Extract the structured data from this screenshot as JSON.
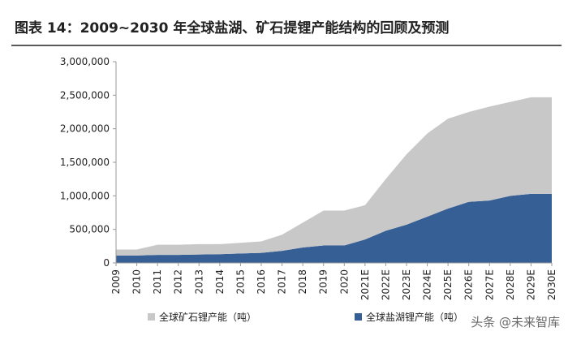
{
  "chart_data": {
    "type": "area",
    "stacked": true,
    "title": "图表 14：2009~2030 年全球盐湖、矿石提锂产能结构的回顾及预测",
    "categories": [
      "2009",
      "2010",
      "2011",
      "2012",
      "2013",
      "2014",
      "2015",
      "2016",
      "2017",
      "2018",
      "2019",
      "2020",
      "2021E",
      "2022E",
      "2023E",
      "2024E",
      "2025E",
      "2026E",
      "2027E",
      "2028E",
      "2029E",
      "2030E"
    ],
    "series": [
      {
        "name": "全球盐湖锂产能（吨）",
        "color": "#355f95",
        "values": [
          110000,
          110000,
          120000,
          120000,
          125000,
          130000,
          140000,
          150000,
          180000,
          230000,
          260000,
          260000,
          350000,
          480000,
          570000,
          690000,
          810000,
          910000,
          930000,
          1000000,
          1030000,
          1030000
        ]
      },
      {
        "name": "全球矿石锂产能（吨）",
        "color": "#c8c8c8",
        "values": [
          90000,
          90000,
          150000,
          150000,
          155000,
          150000,
          160000,
          170000,
          240000,
          370000,
          520000,
          520000,
          510000,
          770000,
          1050000,
          1240000,
          1340000,
          1340000,
          1400000,
          1400000,
          1440000,
          1440000
        ]
      }
    ],
    "ylim": [
      0,
      3000000
    ],
    "yticks": [
      0,
      {
        "value": 500000,
        "label": "500,000"
      },
      {
        "value": 1000000,
        "label": "1,000,000"
      },
      {
        "value": 1500000,
        "label": "1,500,000"
      },
      {
        "value": 2000000,
        "label": "2,000,000"
      },
      {
        "value": 2500000,
        "label": "2,500,000"
      },
      {
        "value": 3000000,
        "label": "3,000,000"
      }
    ],
    "grid": false,
    "watermark": "头条 @未来智库"
  }
}
